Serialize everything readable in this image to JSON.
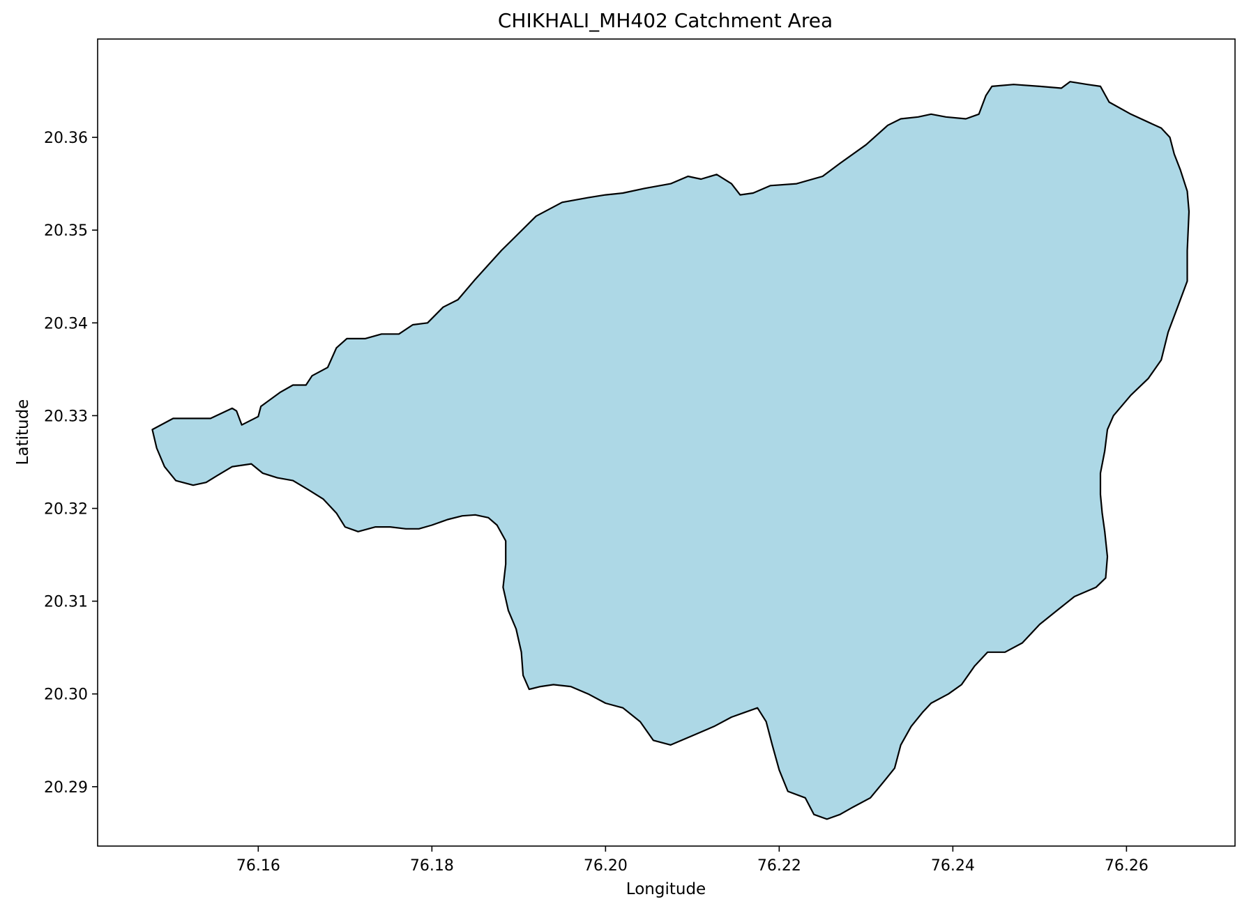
{
  "chart_data": {
    "type": "map",
    "title": "CHIKHALI_MH402 Catchment Area",
    "xlabel": "Longitude",
    "ylabel": "Latitude",
    "xlim": [
      76.1415,
      76.2725
    ],
    "ylim": [
      20.2836,
      20.3706
    ],
    "x_ticks": [
      "76.16",
      "76.18",
      "76.20",
      "76.22",
      "76.24",
      "76.26"
    ],
    "y_ticks": [
      "20.29",
      "20.30",
      "20.31",
      "20.32",
      "20.33",
      "20.34",
      "20.35",
      "20.36"
    ],
    "grid": false,
    "legend": "none",
    "colors": {
      "fill": "#add8e6",
      "outline": "#000000"
    },
    "catchment_outline": [
      [
        76.1502,
        20.3297
      ],
      [
        76.1545,
        20.3297
      ],
      [
        76.157,
        20.3308
      ],
      [
        76.1575,
        20.3305
      ],
      [
        76.1581,
        20.329
      ],
      [
        76.16,
        20.3299
      ],
      [
        76.1603,
        20.331
      ],
      [
        76.1625,
        20.3325
      ],
      [
        76.164,
        20.3333
      ],
      [
        76.1655,
        20.3333
      ],
      [
        76.1662,
        20.3343
      ],
      [
        76.168,
        20.3352
      ],
      [
        76.169,
        20.3373
      ],
      [
        76.1702,
        20.3383
      ],
      [
        76.1723,
        20.3383
      ],
      [
        76.1742,
        20.3388
      ],
      [
        76.1762,
        20.3388
      ],
      [
        76.1778,
        20.3398
      ],
      [
        76.1795,
        20.34
      ],
      [
        76.1813,
        20.3417
      ],
      [
        76.183,
        20.3425
      ],
      [
        76.185,
        20.3447
      ],
      [
        76.188,
        20.3478
      ],
      [
        76.1893,
        20.349
      ],
      [
        76.192,
        20.3515
      ],
      [
        76.195,
        20.353
      ],
      [
        76.198,
        20.3535
      ],
      [
        76.2,
        20.3538
      ],
      [
        76.202,
        20.354
      ],
      [
        76.2045,
        20.3545
      ],
      [
        76.2075,
        20.355
      ],
      [
        76.2095,
        20.3558
      ],
      [
        76.211,
        20.3555
      ],
      [
        76.2128,
        20.356
      ],
      [
        76.2145,
        20.355
      ],
      [
        76.2155,
        20.3538
      ],
      [
        76.217,
        20.354
      ],
      [
        76.219,
        20.3548
      ],
      [
        76.222,
        20.355
      ],
      [
        76.225,
        20.3558
      ],
      [
        76.227,
        20.3572
      ],
      [
        76.23,
        20.3592
      ],
      [
        76.2325,
        20.3613
      ],
      [
        76.234,
        20.362
      ],
      [
        76.236,
        20.3622
      ],
      [
        76.2375,
        20.3625
      ],
      [
        76.2392,
        20.3622
      ],
      [
        76.2415,
        20.362
      ],
      [
        76.243,
        20.3625
      ],
      [
        76.2438,
        20.3645
      ],
      [
        76.2445,
        20.3655
      ],
      [
        76.247,
        20.3657
      ],
      [
        76.25,
        20.3655
      ],
      [
        76.2525,
        20.3653
      ],
      [
        76.2535,
        20.366
      ],
      [
        76.2555,
        20.3657
      ],
      [
        76.257,
        20.3655
      ],
      [
        76.258,
        20.3638
      ],
      [
        76.2605,
        20.3625
      ],
      [
        76.264,
        20.361
      ],
      [
        76.265,
        20.36
      ],
      [
        76.2655,
        20.3582
      ],
      [
        76.2662,
        20.3565
      ],
      [
        76.267,
        20.3542
      ],
      [
        76.2672,
        20.352
      ],
      [
        76.267,
        20.3478
      ],
      [
        76.267,
        20.3445
      ],
      [
        76.266,
        20.342
      ],
      [
        76.2648,
        20.339
      ],
      [
        76.264,
        20.336
      ],
      [
        76.2625,
        20.334
      ],
      [
        76.2605,
        20.3322
      ],
      [
        76.2585,
        20.33
      ],
      [
        76.2578,
        20.3285
      ],
      [
        76.2575,
        20.3262
      ],
      [
        76.257,
        20.3238
      ],
      [
        76.257,
        20.3215
      ],
      [
        76.2572,
        20.3195
      ],
      [
        76.2575,
        20.3175
      ],
      [
        76.2578,
        20.3148
      ],
      [
        76.2576,
        20.3125
      ],
      [
        76.2565,
        20.3115
      ],
      [
        76.254,
        20.3105
      ],
      [
        76.252,
        20.309
      ],
      [
        76.25,
        20.3075
      ],
      [
        76.248,
        20.3055
      ],
      [
        76.246,
        20.3045
      ],
      [
        76.244,
        20.3045
      ],
      [
        76.2425,
        20.303
      ],
      [
        76.241,
        20.301
      ],
      [
        76.2395,
        20.3
      ],
      [
        76.2375,
        20.299
      ],
      [
        76.2365,
        20.298
      ],
      [
        76.2352,
        20.2965
      ],
      [
        76.234,
        20.2945
      ],
      [
        76.2333,
        20.292
      ],
      [
        76.232,
        20.2905
      ],
      [
        76.2305,
        20.2888
      ],
      [
        76.2285,
        20.2878
      ],
      [
        76.227,
        20.287
      ],
      [
        76.2255,
        20.2865
      ],
      [
        76.224,
        20.287
      ],
      [
        76.223,
        20.2888
      ],
      [
        76.221,
        20.2895
      ],
      [
        76.22,
        20.2918
      ],
      [
        76.2192,
        20.2945
      ],
      [
        76.2185,
        20.297
      ],
      [
        76.2175,
        20.2985
      ],
      [
        76.216,
        20.298
      ],
      [
        76.2145,
        20.2975
      ],
      [
        76.2125,
        20.2965
      ],
      [
        76.21,
        20.2955
      ],
      [
        76.2075,
        20.2945
      ],
      [
        76.2055,
        20.295
      ],
      [
        76.204,
        20.297
      ],
      [
        76.202,
        20.2985
      ],
      [
        76.2,
        20.299
      ],
      [
        76.198,
        20.3
      ],
      [
        76.196,
        20.3008
      ],
      [
        76.194,
        20.301
      ],
      [
        76.1925,
        20.3008
      ],
      [
        76.1912,
        20.3005
      ],
      [
        76.1905,
        20.302
      ],
      [
        76.1903,
        20.3045
      ],
      [
        76.1897,
        20.307
      ],
      [
        76.1888,
        20.309
      ],
      [
        76.1882,
        20.3115
      ],
      [
        76.1885,
        20.314
      ],
      [
        76.1885,
        20.3165
      ],
      [
        76.1875,
        20.3182
      ],
      [
        76.1865,
        20.319
      ],
      [
        76.185,
        20.3193
      ],
      [
        76.1835,
        20.3192
      ],
      [
        76.1818,
        20.3188
      ],
      [
        76.18,
        20.3182
      ],
      [
        76.1785,
        20.3178
      ],
      [
        76.177,
        20.3178
      ],
      [
        76.1752,
        20.318
      ],
      [
        76.1735,
        20.318
      ],
      [
        76.1715,
        20.3175
      ],
      [
        76.17,
        20.318
      ],
      [
        76.169,
        20.3195
      ],
      [
        76.1675,
        20.321
      ],
      [
        76.1658,
        20.322
      ],
      [
        76.164,
        20.323
      ],
      [
        76.1622,
        20.3233
      ],
      [
        76.1605,
        20.3238
      ],
      [
        76.1592,
        20.3248
      ],
      [
        76.157,
        20.3245
      ],
      [
        76.1552,
        20.3235
      ],
      [
        76.154,
        20.3228
      ],
      [
        76.1525,
        20.3225
      ],
      [
        76.1505,
        20.323
      ],
      [
        76.1492,
        20.3245
      ],
      [
        76.1483,
        20.3265
      ],
      [
        76.1478,
        20.3285
      ]
    ]
  }
}
